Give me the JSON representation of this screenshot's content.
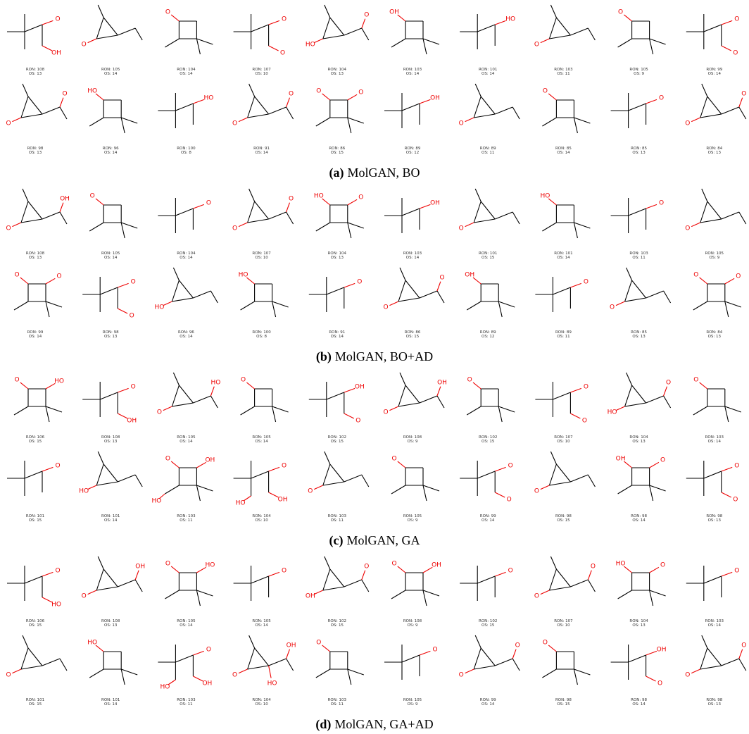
{
  "panels": [
    {
      "label": "(a)",
      "caption": "MolGAN, BO",
      "molecules": [
        {
          "ron": "RON: 108",
          "os": "OS: 13",
          "atoms": [
            "O",
            "OH"
          ]
        },
        {
          "ron": "RON: 105",
          "os": "OS: 14",
          "atoms": [
            "O"
          ]
        },
        {
          "ron": "RON: 104",
          "os": "OS: 14",
          "atoms": [
            "O"
          ]
        },
        {
          "ron": "RON: 107",
          "os": "OS: 10",
          "atoms": [
            "O",
            "O"
          ]
        },
        {
          "ron": "RON: 104",
          "os": "OS: 13",
          "atoms": [
            "HO",
            "O"
          ]
        },
        {
          "ron": "RON: 103",
          "os": "OS: 14",
          "atoms": [
            "OH"
          ]
        },
        {
          "ron": "RON: 101",
          "os": "OS: 14",
          "atoms": [
            "HO"
          ]
        },
        {
          "ron": "RON: 103",
          "os": "OS: 11",
          "atoms": [
            "O"
          ]
        },
        {
          "ron": "RON: 105",
          "os": "OS: 9",
          "atoms": [
            "O"
          ]
        },
        {
          "ron": "RON: 99",
          "os": "OS: 14",
          "atoms": [
            "O",
            "O"
          ]
        },
        {
          "ron": "RON: 98",
          "os": "OS: 13",
          "atoms": [
            "O",
            "O"
          ]
        },
        {
          "ron": "RON: 96",
          "os": "OS: 14",
          "atoms": [
            "HO"
          ]
        },
        {
          "ron": "RON: 100",
          "os": "OS: 8",
          "atoms": [
            "HO"
          ]
        },
        {
          "ron": "RON: 91",
          "os": "OS: 14",
          "atoms": [
            "O",
            "O"
          ]
        },
        {
          "ron": "RON: 86",
          "os": "OS: 15",
          "atoms": [
            "O",
            "O"
          ]
        },
        {
          "ron": "RON: 89",
          "os": "OS: 12",
          "atoms": [
            "OH"
          ]
        },
        {
          "ron": "RON: 89",
          "os": "OS: 11",
          "atoms": [
            "O"
          ]
        },
        {
          "ron": "RON: 85",
          "os": "OS: 14",
          "atoms": [
            "O"
          ]
        },
        {
          "ron": "RON: 85",
          "os": "OS: 13",
          "atoms": [
            "O"
          ]
        },
        {
          "ron": "RON: 84",
          "os": "OS: 13",
          "atoms": [
            "O",
            "O"
          ]
        }
      ]
    },
    {
      "label": "(b)",
      "caption": "MolGAN, BO+AD",
      "molecules": [
        {
          "ron": "RON: 108",
          "os": "OS: 13",
          "atoms": [
            "O",
            "OH"
          ]
        },
        {
          "ron": "RON: 105",
          "os": "OS: 14",
          "atoms": [
            "O"
          ]
        },
        {
          "ron": "RON: 104",
          "os": "OS: 14",
          "atoms": [
            "O"
          ]
        },
        {
          "ron": "RON: 107",
          "os": "OS: 10",
          "atoms": [
            "O",
            "O"
          ]
        },
        {
          "ron": "RON: 104",
          "os": "OS: 13",
          "atoms": [
            "HO",
            "O"
          ]
        },
        {
          "ron": "RON: 103",
          "os": "OS: 14",
          "atoms": [
            "OH"
          ]
        },
        {
          "ron": "RON: 101",
          "os": "OS: 15",
          "atoms": [
            "O"
          ]
        },
        {
          "ron": "RON: 101",
          "os": "OS: 14",
          "atoms": [
            "HO"
          ]
        },
        {
          "ron": "RON: 103",
          "os": "OS: 11",
          "atoms": [
            "O"
          ]
        },
        {
          "ron": "RON: 105",
          "os": "OS: 9",
          "atoms": [
            "O"
          ]
        },
        {
          "ron": "RON: 99",
          "os": "OS: 14",
          "atoms": [
            "O",
            "O"
          ]
        },
        {
          "ron": "RON: 98",
          "os": "OS: 13",
          "atoms": [
            "O",
            "O"
          ]
        },
        {
          "ron": "RON: 96",
          "os": "OS: 14",
          "atoms": [
            "HO"
          ]
        },
        {
          "ron": "RON: 100",
          "os": "OS: 8",
          "atoms": [
            "HO"
          ]
        },
        {
          "ron": "RON: 91",
          "os": "OS: 14",
          "atoms": [
            "O"
          ]
        },
        {
          "ron": "RON: 86",
          "os": "OS: 15",
          "atoms": [
            "O",
            "O"
          ]
        },
        {
          "ron": "RON: 89",
          "os": "OS: 12",
          "atoms": [
            "OH"
          ]
        },
        {
          "ron": "RON: 89",
          "os": "OS: 11",
          "atoms": [
            "O"
          ]
        },
        {
          "ron": "RON: 85",
          "os": "OS: 13",
          "atoms": [
            "O"
          ]
        },
        {
          "ron": "RON: 84",
          "os": "OS: 13",
          "atoms": [
            "O",
            "O"
          ]
        }
      ]
    },
    {
      "label": "(c)",
      "caption": "MolGAN, GA",
      "molecules": [
        {
          "ron": "RON: 106",
          "os": "OS: 15",
          "atoms": [
            "O",
            "HO"
          ]
        },
        {
          "ron": "RON: 108",
          "os": "OS: 13",
          "atoms": [
            "O",
            "OH"
          ]
        },
        {
          "ron": "RON: 105",
          "os": "OS: 14",
          "atoms": [
            "O",
            "HO"
          ]
        },
        {
          "ron": "RON: 105",
          "os": "OS: 14",
          "atoms": [
            "O"
          ]
        },
        {
          "ron": "RON: 102",
          "os": "OS: 15",
          "atoms": [
            "OH",
            "O"
          ]
        },
        {
          "ron": "RON: 108",
          "os": "OS: 9",
          "atoms": [
            "O",
            "OH"
          ]
        },
        {
          "ron": "RON: 102",
          "os": "OS: 15",
          "atoms": [
            "O"
          ]
        },
        {
          "ron": "RON: 107",
          "os": "OS: 10",
          "atoms": [
            "O",
            "O"
          ]
        },
        {
          "ron": "RON: 104",
          "os": "OS: 13",
          "atoms": [
            "HO",
            "O"
          ]
        },
        {
          "ron": "RON: 103",
          "os": "OS: 14",
          "atoms": [
            "O"
          ]
        },
        {
          "ron": "RON: 101",
          "os": "OS: 15",
          "atoms": [
            "O"
          ]
        },
        {
          "ron": "RON: 101",
          "os": "OS: 14",
          "atoms": [
            "HO"
          ]
        },
        {
          "ron": "RON: 103",
          "os": "OS: 11",
          "atoms": [
            "O",
            "OH",
            "HO"
          ]
        },
        {
          "ron": "RON: 104",
          "os": "OS: 10",
          "atoms": [
            "O",
            "OH",
            "HO"
          ]
        },
        {
          "ron": "RON: 103",
          "os": "OS: 11",
          "atoms": [
            "O"
          ]
        },
        {
          "ron": "RON: 105",
          "os": "OS: 9",
          "atoms": [
            "O"
          ]
        },
        {
          "ron": "RON: 99",
          "os": "OS: 14",
          "atoms": [
            "O",
            "O"
          ]
        },
        {
          "ron": "RON: 98",
          "os": "OS: 15",
          "atoms": [
            "O"
          ]
        },
        {
          "ron": "RON: 98",
          "os": "OS: 14",
          "atoms": [
            "OH",
            "O"
          ]
        },
        {
          "ron": "RON: 98",
          "os": "OS: 13",
          "atoms": [
            "O",
            "O"
          ]
        }
      ]
    },
    {
      "label": "(d)",
      "caption": "MolGAN, GA+AD",
      "molecules": [
        {
          "ron": "RON: 106",
          "os": "OS: 15",
          "atoms": [
            "O",
            "HO"
          ]
        },
        {
          "ron": "RON: 108",
          "os": "OS: 13",
          "atoms": [
            "O",
            "OH"
          ]
        },
        {
          "ron": "RON: 105",
          "os": "OS: 14",
          "atoms": [
            "O",
            "HO"
          ]
        },
        {
          "ron": "RON: 105",
          "os": "OS: 14",
          "atoms": [
            "O"
          ]
        },
        {
          "ron": "RON: 102",
          "os": "OS: 15",
          "atoms": [
            "OH",
            "O"
          ]
        },
        {
          "ron": "RON: 108",
          "os": "OS: 9",
          "atoms": [
            "O",
            "OH"
          ]
        },
        {
          "ron": "RON: 102",
          "os": "OS: 15",
          "atoms": [
            "O"
          ]
        },
        {
          "ron": "RON: 107",
          "os": "OS: 10",
          "atoms": [
            "O",
            "O"
          ]
        },
        {
          "ron": "RON: 104",
          "os": "OS: 13",
          "atoms": [
            "HO",
            "O"
          ]
        },
        {
          "ron": "RON: 103",
          "os": "OS: 14",
          "atoms": [
            "O"
          ]
        },
        {
          "ron": "RON: 101",
          "os": "OS: 15",
          "atoms": [
            "O"
          ]
        },
        {
          "ron": "RON: 101",
          "os": "OS: 14",
          "atoms": [
            "HO"
          ]
        },
        {
          "ron": "RON: 103",
          "os": "OS: 11",
          "atoms": [
            "O",
            "OH",
            "HO"
          ]
        },
        {
          "ron": "RON: 104",
          "os": "OS: 10",
          "atoms": [
            "O",
            "OH",
            "HO"
          ]
        },
        {
          "ron": "RON: 103",
          "os": "OS: 11",
          "atoms": [
            "O"
          ]
        },
        {
          "ron": "RON: 105",
          "os": "OS: 9",
          "atoms": [
            "O"
          ]
        },
        {
          "ron": "RON: 99",
          "os": "OS: 14",
          "atoms": [
            "O",
            "O"
          ]
        },
        {
          "ron": "RON: 98",
          "os": "OS: 15",
          "atoms": [
            "O"
          ]
        },
        {
          "ron": "RON: 98",
          "os": "OS: 14",
          "atoms": [
            "OH",
            "O"
          ]
        },
        {
          "ron": "RON: 98",
          "os": "OS: 13",
          "atoms": [
            "O",
            "O"
          ]
        }
      ]
    }
  ]
}
